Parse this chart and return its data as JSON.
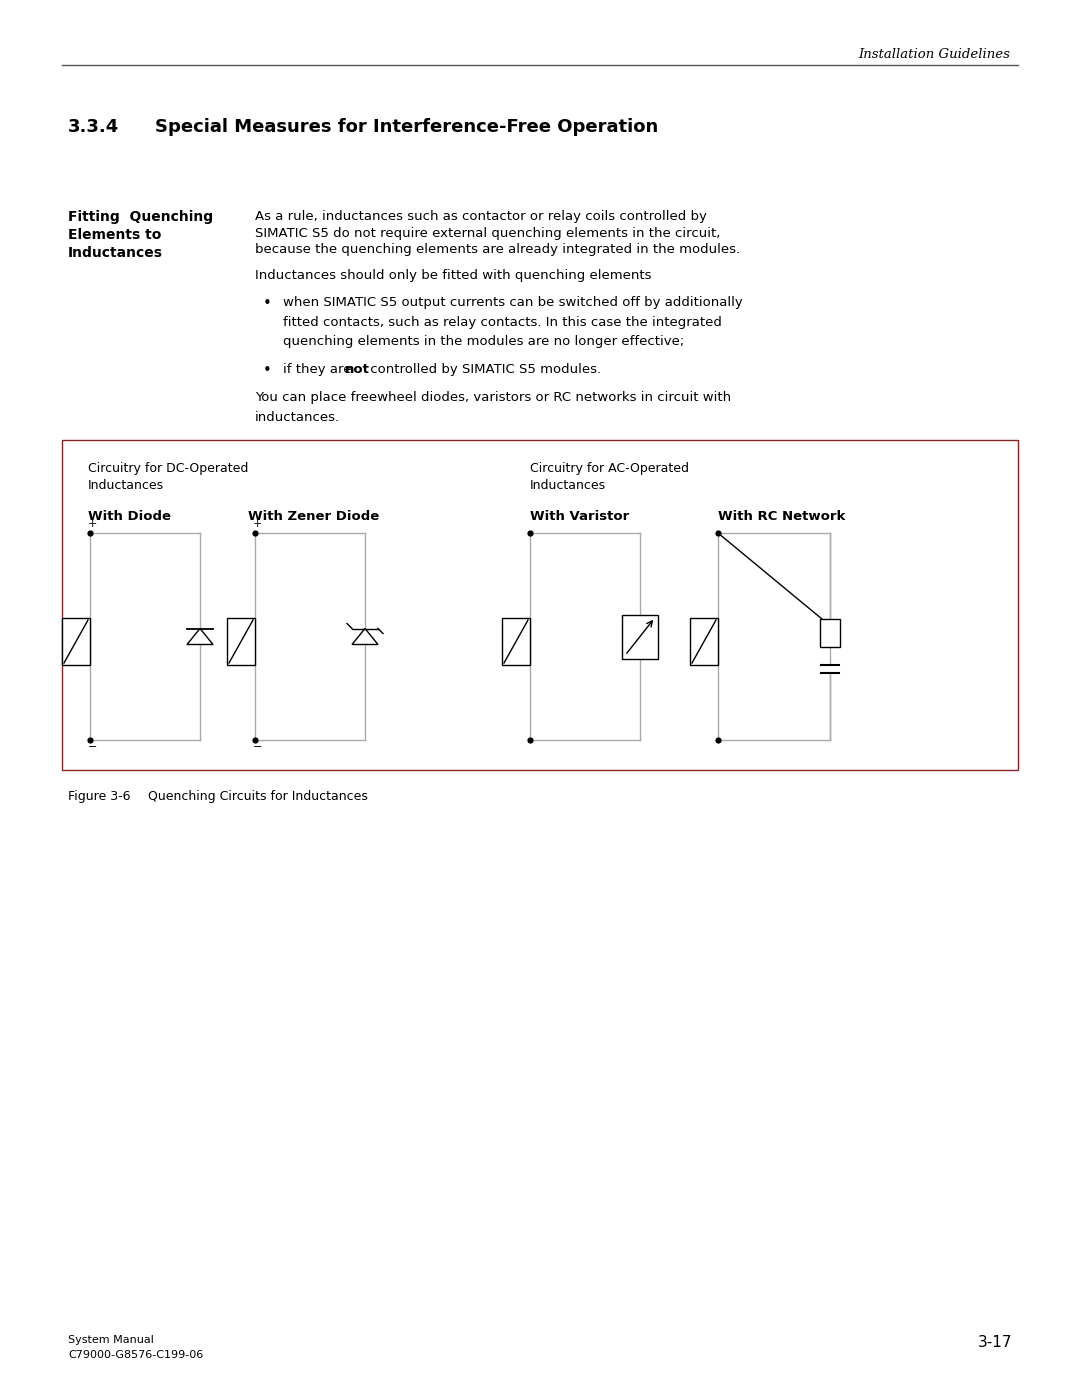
{
  "page_title_right": "Installation Guidelines",
  "section_number": "3.3.4",
  "section_title": "Special Measures for Interference-Free Operation",
  "left_heading_line1": "Fitting  Quenching",
  "left_heading_line2": "Elements to",
  "left_heading_line3": "Inductances",
  "para1_l1": "As a rule, inductances such as contactor or relay coils controlled by",
  "para1_l2": "SIMATIC S5 do not require external quenching elements in the circuit,",
  "para1_l3": "because the quenching elements are already integrated in the modules.",
  "para2": "Inductances should only be fitted with quenching elements",
  "bullet1_l1": "when SIMATIC S5 output currents can be switched off by additionally",
  "bullet1_l2": "fitted contacts, such as relay contacts. In this case the integrated",
  "bullet1_l3": "quenching elements in the modules are no longer effective;",
  "bullet2_pre": "if they are ",
  "bullet2_bold": "not",
  "bullet2_post": " controlled by SIMATIC S5 modules.",
  "para3_l1": "You can place freewheel diodes, varistors or RC networks in circuit with",
  "para3_l2": "inductances.",
  "box_label_dc_l1": "Circuitry for DC-Operated",
  "box_label_dc_l2": "Inductances",
  "box_label_ac_l1": "Circuitry for AC-Operated",
  "box_label_ac_l2": "Inductances",
  "col1_label": "With Diode",
  "col2_label": "With Zener Diode",
  "col3_label": "With Varistor",
  "col4_label": "With RC Network",
  "fig_label": "Figure 3-6",
  "fig_caption": "Quenching Circuits for Inductances",
  "footer_left_line1": "System Manual",
  "footer_left_line2": "C79000-G8576-C199-06",
  "footer_right": "3-17",
  "bg_color": "#ffffff",
  "text_color": "#000000",
  "gray_line": "#888888",
  "box_border_color": "#882222",
  "circuit_color": "#aaaaaa",
  "black": "#000000"
}
